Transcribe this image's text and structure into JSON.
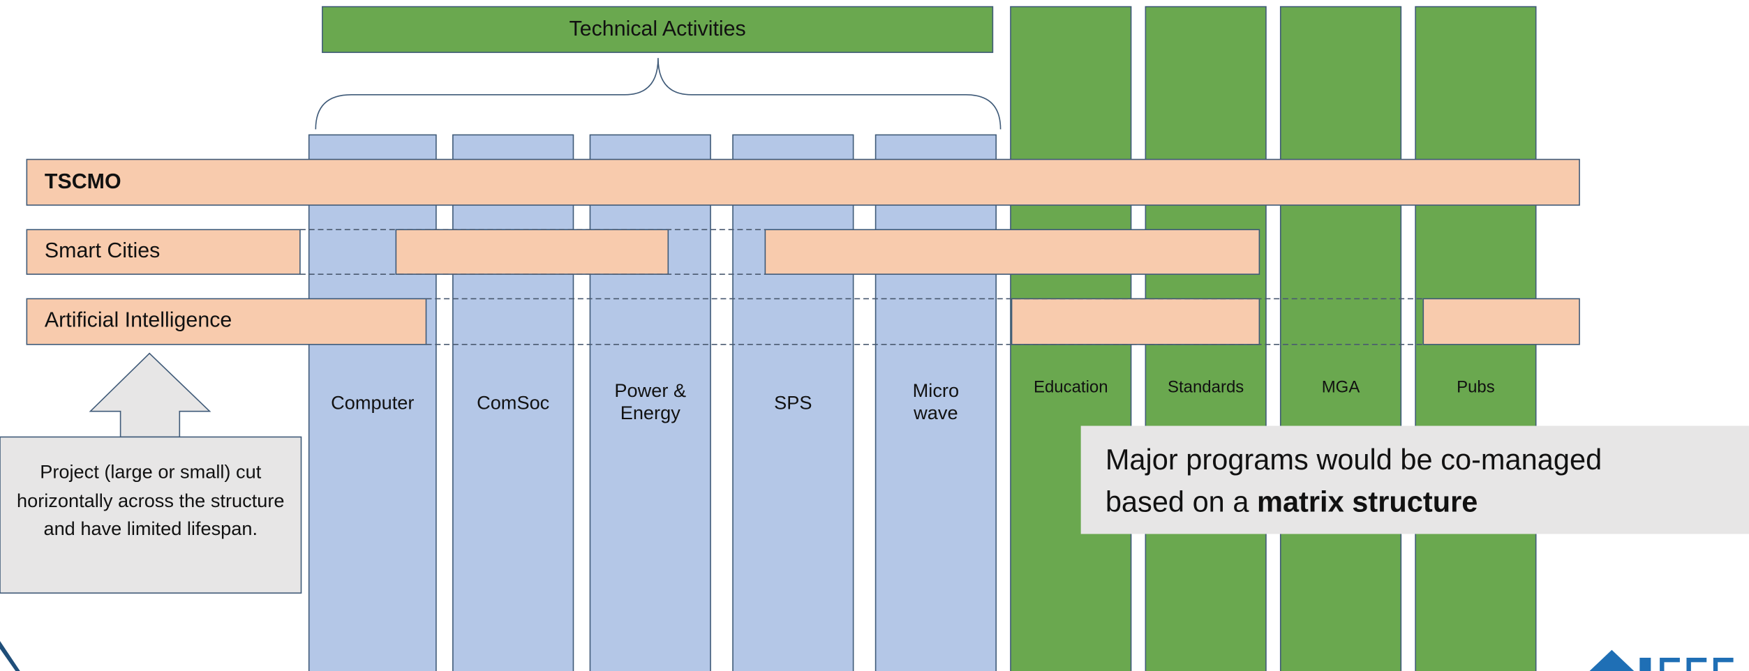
{
  "header": {
    "title": "Technical Activities"
  },
  "technical_columns": [
    "Computer",
    "ComSoc",
    "Power &\nEnergy",
    "SPS",
    "Micro\nwave"
  ],
  "other_columns": [
    "Education",
    "Standards",
    "MGA",
    "Pubs"
  ],
  "rows": [
    "TSCMO",
    "Smart Cities",
    "Artificial Intelligence"
  ],
  "callouts": {
    "project": "Project (large or small) cut horizontally across the structure and have limited lifespan.",
    "matrix": {
      "text": "Major programs would be co-managed based on a ",
      "bold": "matrix structure"
    }
  }
}
